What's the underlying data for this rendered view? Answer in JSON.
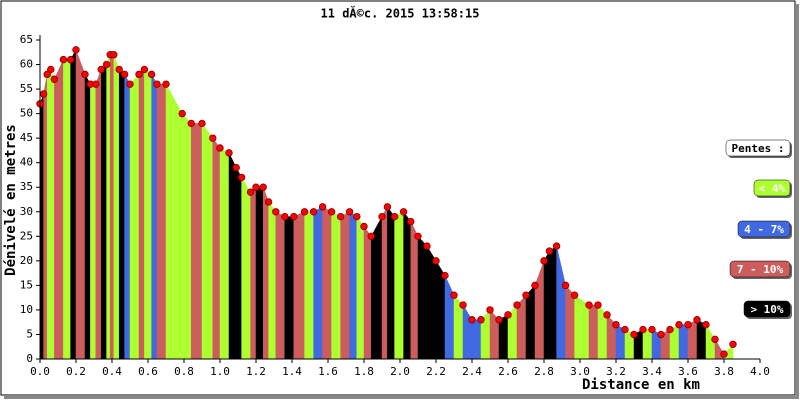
{
  "chart_data": {
    "type": "area",
    "title": "11 dĂ©c. 2015 13:58:15",
    "x_label": "Distance en km",
    "y_label": "Dénivelé en metres",
    "legend_title": "Pentes :",
    "legend": [
      {
        "label": "< 4%",
        "color": "#adff2f"
      },
      {
        "label": "4 - 7%",
        "color": "#4169e1"
      },
      {
        "label": "7 - 10%",
        "color": "#cd5c5c"
      },
      {
        "label": "> 10%",
        "color": "#000000"
      }
    ],
    "x": [
      0.0,
      0.02,
      0.04,
      0.06,
      0.08,
      0.13,
      0.17,
      0.2,
      0.25,
      0.28,
      0.31,
      0.34,
      0.37,
      0.39,
      0.41,
      0.44,
      0.47,
      0.5,
      0.55,
      0.58,
      0.62,
      0.65,
      0.7,
      0.79,
      0.84,
      0.9,
      0.96,
      1.0,
      1.05,
      1.09,
      1.12,
      1.17,
      1.2,
      1.24,
      1.27,
      1.31,
      1.36,
      1.41,
      1.47,
      1.52,
      1.57,
      1.62,
      1.67,
      1.72,
      1.76,
      1.8,
      1.84,
      1.9,
      1.93,
      1.97,
      2.02,
      2.06,
      2.1,
      2.15,
      2.2,
      2.25,
      2.3,
      2.35,
      2.4,
      2.45,
      2.5,
      2.55,
      2.6,
      2.65,
      2.7,
      2.75,
      2.8,
      2.83,
      2.87,
      2.92,
      2.97,
      3.05,
      3.1,
      3.15,
      3.2,
      3.25,
      3.3,
      3.35,
      3.4,
      3.45,
      3.5,
      3.55,
      3.6,
      3.65,
      3.7,
      3.75,
      3.8,
      3.85
    ],
    "values": [
      52,
      54,
      58,
      59,
      57,
      61,
      61,
      63,
      58,
      56,
      56,
      59,
      60,
      62,
      62,
      59,
      58,
      56,
      58,
      59,
      58,
      56,
      56,
      50,
      48,
      48,
      45,
      43,
      42,
      39,
      37,
      34,
      35,
      35,
      32,
      30,
      29,
      29,
      30,
      30,
      31,
      30,
      29,
      30,
      29,
      27,
      25,
      29,
      31,
      29,
      30,
      28,
      25,
      23,
      20,
      17,
      13,
      11,
      8,
      8,
      10,
      8,
      9,
      11,
      13,
      15,
      20,
      22,
      23,
      15,
      13,
      11,
      11,
      9,
      7,
      6,
      5,
      6,
      6,
      5,
      6,
      7,
      7,
      8,
      7,
      4,
      1,
      3
    ],
    "segment_colors": [
      "#000000",
      "#cd5c5c",
      "#adff2f",
      "#adff2f",
      "#cd5c5c",
      "#adff2f",
      "#000000",
      "#cd5c5c",
      "#000000",
      "#adff2f",
      "#cd5c5c",
      "#000000",
      "#adff2f",
      "#cd5c5c",
      "#adff2f",
      "#000000",
      "#4169e1",
      "#adff2f",
      "#cd5c5c",
      "#adff2f",
      "#4169e1",
      "#cd5c5c",
      "#adff2f",
      "#adff2f",
      "#cd5c5c",
      "#adff2f",
      "#cd5c5c",
      "#adff2f",
      "#000000",
      "#000000",
      "#adff2f",
      "#cd5c5c",
      "#000000",
      "#cd5c5c",
      "#adff2f",
      "#cd5c5c",
      "#000000",
      "#cd5c5c",
      "#adff2f",
      "#4169e1",
      "#cd5c5c",
      "#adff2f",
      "#cd5c5c",
      "#4169e1",
      "#adff2f",
      "#cd5c5c",
      "#000000",
      "#cd5c5c",
      "#000000",
      "#adff2f",
      "#000000",
      "#cd5c5c",
      "#000000",
      "#000000",
      "#000000",
      "#4169e1",
      "#adff2f",
      "#4169e1",
      "#4169e1",
      "#adff2f",
      "#cd5c5c",
      "#000000",
      "#adff2f",
      "#cd5c5c",
      "#000000",
      "#cd5c5c",
      "#000000",
      "#000000",
      "#4169e1",
      "#cd5c5c",
      "#adff2f",
      "#cd5c5c",
      "#adff2f",
      "#cd5c5c",
      "#4169e1",
      "#adff2f",
      "#000000",
      "#adff2f",
      "#4169e1",
      "#cd5c5c",
      "#adff2f",
      "#4169e1",
      "#cd5c5c",
      "#000000",
      "#adff2f",
      "#cd5c5c",
      "#adff2f"
    ],
    "marker_color": "#ff0000",
    "xlim": [
      0,
      4
    ],
    "xticks": [
      {
        "value": 0,
        "label": "0.0"
      },
      0.2,
      0.4,
      0.6,
      0.8,
      {
        "value": 1,
        "label": "1.0"
      },
      1.2,
      1.4,
      1.6,
      1.8,
      {
        "value": 2,
        "label": "2.0"
      },
      2.2,
      2.4,
      2.6,
      2.8,
      {
        "value": 3,
        "label": "3.0"
      },
      3.2,
      3.4,
      3.6,
      3.8,
      {
        "value": 4,
        "label": "4.0"
      }
    ],
    "ylim": [
      0,
      65
    ],
    "yticks": [
      0,
      5,
      10,
      15,
      20,
      25,
      30,
      35,
      40,
      45,
      50,
      55,
      60,
      65
    ]
  }
}
